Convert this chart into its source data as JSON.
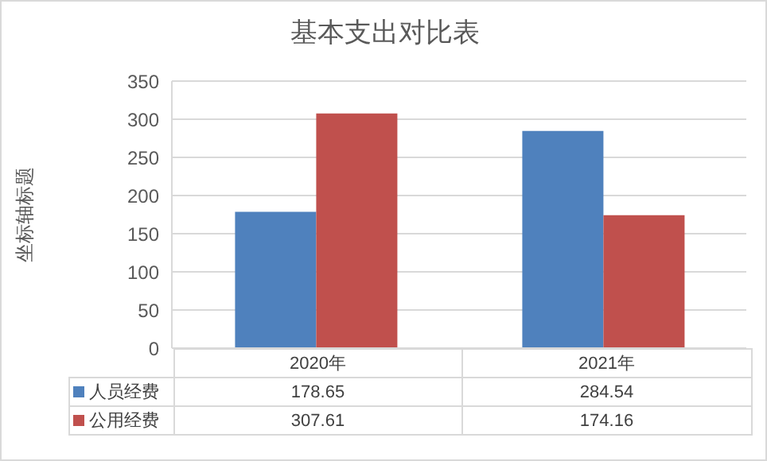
{
  "chart_data": {
    "type": "bar",
    "title": "基本支出对比表",
    "ylabel": "坐标轴标题",
    "categories": [
      "2020年",
      "2021年"
    ],
    "series": [
      {
        "name": "人员经费",
        "color": "#4f81bd",
        "values": [
          178.65,
          284.54
        ]
      },
      {
        "name": "公用经费",
        "color": "#c0504d",
        "values": [
          307.61,
          174.16
        ]
      }
    ],
    "ylim": [
      0,
      350
    ],
    "yticks": [
      0,
      50,
      100,
      150,
      200,
      250,
      300,
      350
    ],
    "grid": "y",
    "legend": "bottom",
    "data_labels": true
  }
}
